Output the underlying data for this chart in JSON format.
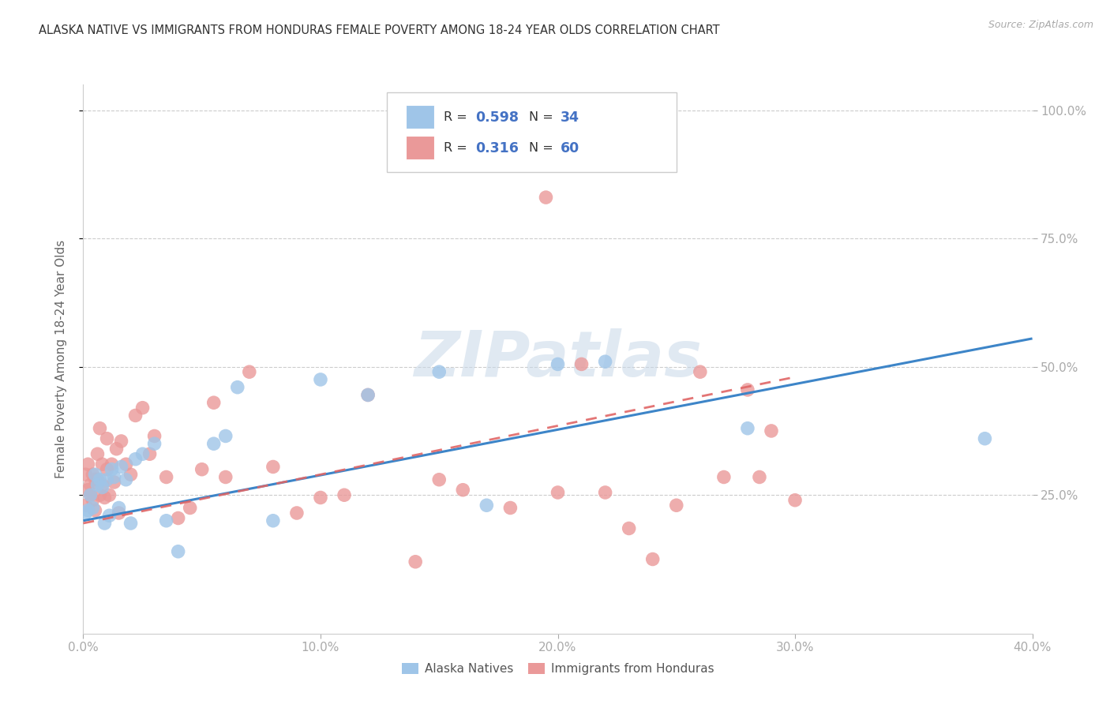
{
  "title": "ALASKA NATIVE VS IMMIGRANTS FROM HONDURAS FEMALE POVERTY AMONG 18-24 YEAR OLDS CORRELATION CHART",
  "source": "Source: ZipAtlas.com",
  "ylabel": "Female Poverty Among 18-24 Year Olds",
  "xlim": [
    0.0,
    0.4
  ],
  "ylim": [
    -0.02,
    1.05
  ],
  "xtick_labels": [
    "0.0%",
    "10.0%",
    "20.0%",
    "30.0%",
    "40.0%"
  ],
  "xtick_vals": [
    0.0,
    0.1,
    0.2,
    0.3,
    0.4
  ],
  "ytick_vals": [
    0.25,
    0.5,
    0.75,
    1.0
  ],
  "ytick_labels": [
    "25.0%",
    "50.0%",
    "75.0%",
    "100.0%"
  ],
  "blue_color": "#9fc5e8",
  "pink_color": "#ea9999",
  "blue_line_color": "#3d85c8",
  "pink_line_color": "#e06666",
  "blue_R": 0.598,
  "blue_N": 34,
  "pink_R": 0.316,
  "pink_N": 60,
  "legend1_label": "Alaska Natives",
  "legend2_label": "Immigrants from Honduras",
  "watermark": "ZIPatlas",
  "blue_points_x": [
    0.001,
    0.002,
    0.003,
    0.004,
    0.005,
    0.006,
    0.007,
    0.008,
    0.009,
    0.01,
    0.011,
    0.012,
    0.013,
    0.015,
    0.016,
    0.018,
    0.02,
    0.022,
    0.025,
    0.03,
    0.035,
    0.04,
    0.055,
    0.06,
    0.065,
    0.08,
    0.1,
    0.12,
    0.15,
    0.17,
    0.2,
    0.22,
    0.28,
    0.38
  ],
  "blue_points_y": [
    0.215,
    0.22,
    0.25,
    0.225,
    0.29,
    0.27,
    0.28,
    0.265,
    0.195,
    0.28,
    0.21,
    0.3,
    0.285,
    0.225,
    0.305,
    0.28,
    0.195,
    0.32,
    0.33,
    0.35,
    0.2,
    0.14,
    0.35,
    0.365,
    0.46,
    0.2,
    0.475,
    0.445,
    0.49,
    0.23,
    0.505,
    0.51,
    0.38,
    0.36
  ],
  "pink_points_x": [
    0.001,
    0.001,
    0.002,
    0.002,
    0.003,
    0.003,
    0.004,
    0.004,
    0.005,
    0.005,
    0.006,
    0.006,
    0.007,
    0.007,
    0.008,
    0.008,
    0.009,
    0.01,
    0.01,
    0.011,
    0.012,
    0.013,
    0.014,
    0.015,
    0.016,
    0.018,
    0.02,
    0.022,
    0.025,
    0.028,
    0.03,
    0.035,
    0.04,
    0.045,
    0.05,
    0.055,
    0.06,
    0.07,
    0.08,
    0.09,
    0.1,
    0.11,
    0.12,
    0.14,
    0.15,
    0.16,
    0.18,
    0.195,
    0.2,
    0.21,
    0.22,
    0.23,
    0.24,
    0.25,
    0.26,
    0.27,
    0.28,
    0.285,
    0.29,
    0.3
  ],
  "pink_points_y": [
    0.23,
    0.29,
    0.26,
    0.31,
    0.25,
    0.27,
    0.24,
    0.29,
    0.28,
    0.22,
    0.28,
    0.33,
    0.25,
    0.38,
    0.27,
    0.31,
    0.245,
    0.3,
    0.36,
    0.25,
    0.31,
    0.275,
    0.34,
    0.215,
    0.355,
    0.31,
    0.29,
    0.405,
    0.42,
    0.33,
    0.365,
    0.285,
    0.205,
    0.225,
    0.3,
    0.43,
    0.285,
    0.49,
    0.305,
    0.215,
    0.245,
    0.25,
    0.445,
    0.12,
    0.28,
    0.26,
    0.225,
    0.83,
    0.255,
    0.505,
    0.255,
    0.185,
    0.125,
    0.23,
    0.49,
    0.285,
    0.455,
    0.285,
    0.375,
    0.24
  ],
  "blue_line_x0": 0.0,
  "blue_line_y0": 0.2,
  "blue_line_x1": 0.4,
  "blue_line_y1": 0.555,
  "pink_line_x0": 0.0,
  "pink_line_y0": 0.195,
  "pink_line_x1": 0.3,
  "pink_line_y1": 0.48
}
